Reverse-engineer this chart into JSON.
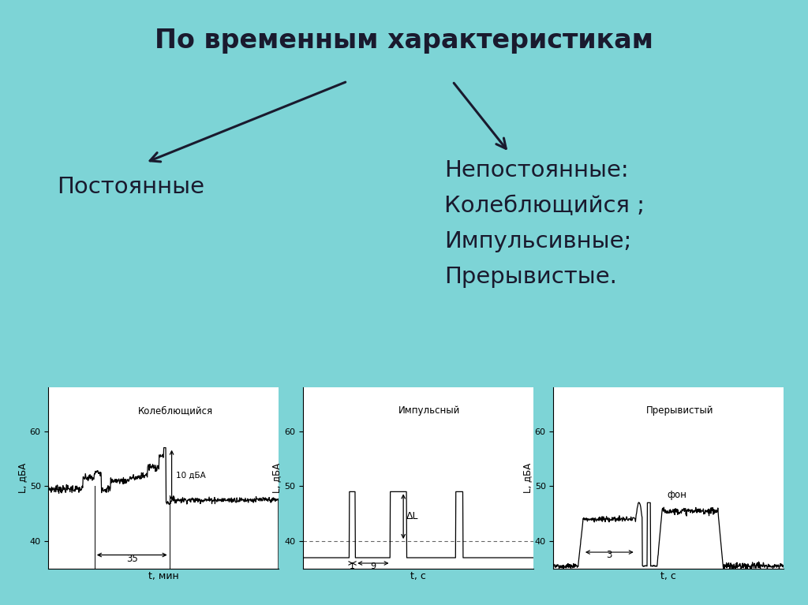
{
  "bg_color": "#7dd4d6",
  "title": "По временным характеристикам",
  "title_fontsize": 24,
  "title_color": "#1a1a2e",
  "left_label": "Постоянные",
  "right_label_lines": [
    "Непостоянные:",
    "Колеблющийся ;",
    "Импульсивные;",
    "Прерывистые."
  ],
  "label_fontsize": 21,
  "label_color": "#1a1a2e",
  "graph_titles": [
    "Колеблющийся",
    "Импульсный",
    "Прерывистый"
  ],
  "graph_ylabel": "L, дБА",
  "graph_xlabels": [
    "t, мин",
    "t, с",
    "t, с"
  ],
  "yticks": [
    40,
    50,
    60
  ],
  "annotation_color": "#333333",
  "arrow_color": "#1a1a2e"
}
